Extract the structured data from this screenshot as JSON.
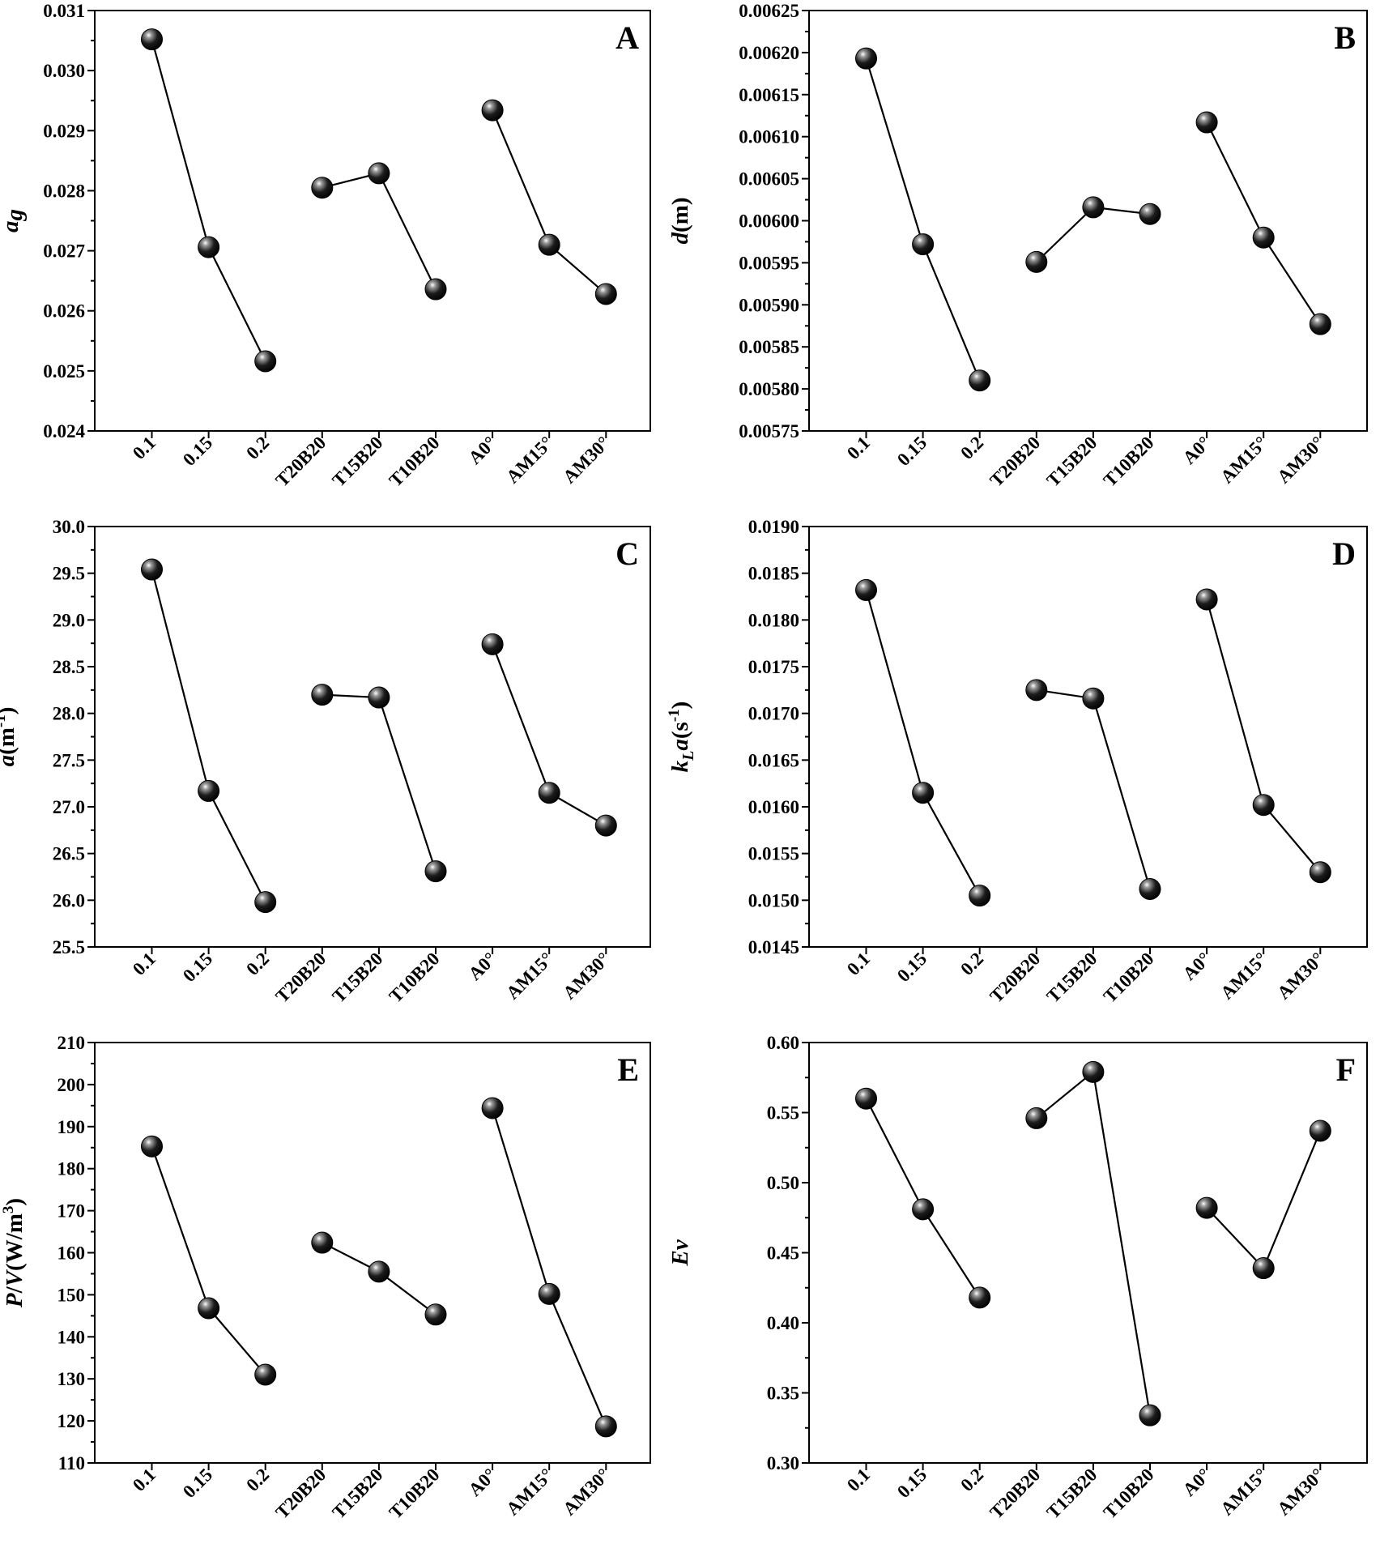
{
  "chart_data": [
    {
      "panel": "A",
      "type": "line",
      "categories": [
        "0.1",
        "0.15",
        "0.2",
        "T20B20",
        "T15B20",
        "T10B20",
        "A0°",
        "AM15°",
        "AM30°"
      ],
      "groups": [
        [
          0,
          1,
          2
        ],
        [
          3,
          4,
          5
        ],
        [
          6,
          7,
          8
        ]
      ],
      "values": [
        0.03052,
        0.02706,
        0.02516,
        0.02805,
        0.02829,
        0.02636,
        0.02934,
        0.0271,
        0.02628
      ],
      "ylabel": "a_g",
      "ylim": [
        0.024,
        0.031
      ],
      "ticks": [
        "0.024",
        "0.025",
        "0.026",
        "0.027",
        "0.028",
        "0.029",
        "0.030",
        "0.031"
      ]
    },
    {
      "panel": "B",
      "type": "line",
      "categories": [
        "0.1",
        "0.15",
        "0.2",
        "T20B20",
        "T15B20",
        "T10B20",
        "A0°",
        "AM15°",
        "AM30°"
      ],
      "groups": [
        [
          0,
          1,
          2
        ],
        [
          3,
          4,
          5
        ],
        [
          6,
          7,
          8
        ]
      ],
      "values": [
        0.006193,
        0.005972,
        0.00581,
        0.005951,
        0.006016,
        0.006008,
        0.006117,
        0.00598,
        0.005877
      ],
      "ylabel": "d(m)",
      "ylim": [
        0.00575,
        0.00625
      ],
      "ticks": [
        "0.00575",
        "0.00580",
        "0.00585",
        "0.00590",
        "0.00595",
        "0.00600",
        "0.00605",
        "0.00610",
        "0.00615",
        "0.00620",
        "0.00625"
      ]
    },
    {
      "panel": "C",
      "type": "line",
      "categories": [
        "0.1",
        "0.15",
        "0.2",
        "T20B20",
        "T15B20",
        "T10B20",
        "A0°",
        "AM15°",
        "AM30°"
      ],
      "groups": [
        [
          0,
          1,
          2
        ],
        [
          3,
          4,
          5
        ],
        [
          6,
          7,
          8
        ]
      ],
      "values": [
        29.54,
        27.17,
        25.98,
        28.2,
        28.17,
        26.31,
        28.74,
        27.15,
        26.8
      ],
      "ylabel": "a(m-1)",
      "ylim": [
        25.5,
        30.0
      ],
      "ticks": [
        "25.5",
        "26.0",
        "26.5",
        "27.0",
        "27.5",
        "28.0",
        "28.5",
        "29.0",
        "29.5",
        "30.0"
      ]
    },
    {
      "panel": "D",
      "type": "line",
      "categories": [
        "0.1",
        "0.15",
        "0.2",
        "T20B20",
        "T15B20",
        "T10B20",
        "A0°",
        "AM15°",
        "AM30°"
      ],
      "groups": [
        [
          0,
          1,
          2
        ],
        [
          3,
          4,
          5
        ],
        [
          6,
          7,
          8
        ]
      ],
      "values": [
        0.01832,
        0.01615,
        0.01505,
        0.01725,
        0.01716,
        0.01512,
        0.01822,
        0.01602,
        0.0153
      ],
      "ylabel": "k_L a(s-1)",
      "ylim": [
        0.0145,
        0.019
      ],
      "ticks": [
        "0.0145",
        "0.0150",
        "0.0155",
        "0.0160",
        "0.0165",
        "0.0170",
        "0.0175",
        "0.0180",
        "0.0185",
        "0.0190"
      ]
    },
    {
      "panel": "E",
      "type": "line",
      "categories": [
        "0.1",
        "0.15",
        "0.2",
        "T20B20",
        "T15B20",
        "T10B20",
        "A0°",
        "AM15°",
        "AM30°"
      ],
      "groups": [
        [
          0,
          1,
          2
        ],
        [
          3,
          4,
          5
        ],
        [
          6,
          7,
          8
        ]
      ],
      "values": [
        185.3,
        146.8,
        131.0,
        162.4,
        155.5,
        145.3,
        194.4,
        150.2,
        118.7
      ],
      "ylabel": "P/V(W/m3)",
      "ylim": [
        110,
        210
      ],
      "ticks": [
        "110",
        "120",
        "130",
        "140",
        "150",
        "160",
        "170",
        "180",
        "190",
        "200",
        "210"
      ]
    },
    {
      "panel": "F",
      "type": "line",
      "categories": [
        "0.1",
        "0.15",
        "0.2",
        "T20B20",
        "T15B20",
        "T10B20",
        "A0°",
        "AM15°",
        "AM30°"
      ],
      "groups": [
        [
          0,
          1,
          2
        ],
        [
          3,
          4,
          5
        ],
        [
          6,
          7,
          8
        ]
      ],
      "values": [
        0.56,
        0.481,
        0.418,
        0.546,
        0.579,
        0.334,
        0.482,
        0.439,
        0.537
      ],
      "ylabel": "Ev",
      "ylim": [
        0.3,
        0.6
      ],
      "ticks": [
        "0.30",
        "0.35",
        "0.40",
        "0.45",
        "0.50",
        "0.55",
        "0.60"
      ]
    }
  ]
}
